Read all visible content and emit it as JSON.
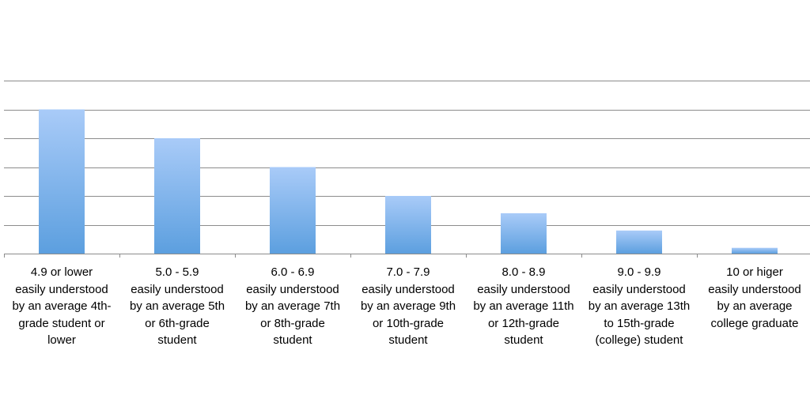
{
  "chart_data": {
    "type": "bar",
    "categories": [
      "4.9 or lower\neasily understood\nby an average 4th-\ngrade student or\nlower",
      "5.0 - 5.9\neasily understood\nby an average 5th\nor 6th-grade\nstudent",
      "6.0 - 6.9\neasily understood\nby an average 7th\nor 8th-grade\nstudent",
      "7.0 - 7.9\neasily understood\nby an average 9th\nor 10th-grade\nstudent",
      "8.0 - 8.9\neasily understood\nby an average 11th\nor 12th-grade\nstudent",
      "9.0 - 9.9\neasily understood\nby an average 13th\nto 15th-grade\n(college) student",
      "10 or higer\neasily understood\nby an average\ncollege graduate"
    ],
    "values": [
      5,
      4,
      3,
      2,
      1.4,
      0.8,
      0.2
    ],
    "ylim": [
      0,
      6
    ],
    "grid": true,
    "title": "",
    "xlabel": "",
    "ylabel": "",
    "colors": {
      "bar_top": "#a9cbf8",
      "bar_bottom": "#5c9fdf",
      "gridline": "#8c8c8c",
      "axis": "#8c8c8c"
    }
  }
}
